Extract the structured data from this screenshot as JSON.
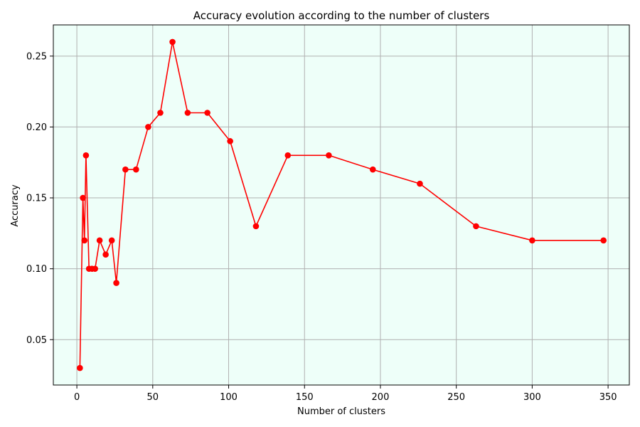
{
  "chart_data": {
    "type": "line",
    "title": "Accuracy evolution according to the number of clusters",
    "xlabel": "Number of clusters",
    "ylabel": "Accuracy",
    "xlim": [
      -15.5,
      364
    ],
    "ylim": [
      0.018,
      0.272
    ],
    "x_ticks": [
      0,
      50,
      100,
      150,
      200,
      250,
      300,
      350
    ],
    "x_tick_labels": [
      "0",
      "50",
      "100",
      "150",
      "200",
      "250",
      "300",
      "350"
    ],
    "y_ticks": [
      0.05,
      0.1,
      0.15,
      0.2,
      0.25
    ],
    "y_tick_labels": [
      "0.05",
      "0.10",
      "0.15",
      "0.20",
      "0.25"
    ],
    "grid": true,
    "background": "#eefff9",
    "series": [
      {
        "color": "#ff0000",
        "marker": "circle",
        "x": [
          2,
          4,
          5,
          6,
          8,
          10,
          12,
          15,
          19,
          23,
          26,
          32,
          39,
          47,
          55,
          63,
          73,
          86,
          101,
          118,
          139,
          166,
          195,
          226,
          263,
          300,
          347
        ],
        "y": [
          0.03,
          0.15,
          0.12,
          0.18,
          0.1,
          0.1,
          0.1,
          0.12,
          0.11,
          0.12,
          0.09,
          0.17,
          0.17,
          0.2,
          0.21,
          0.26,
          0.21,
          0.21,
          0.19,
          0.13,
          0.18,
          0.18,
          0.17,
          0.16,
          0.13,
          0.12,
          0.12
        ]
      }
    ]
  }
}
